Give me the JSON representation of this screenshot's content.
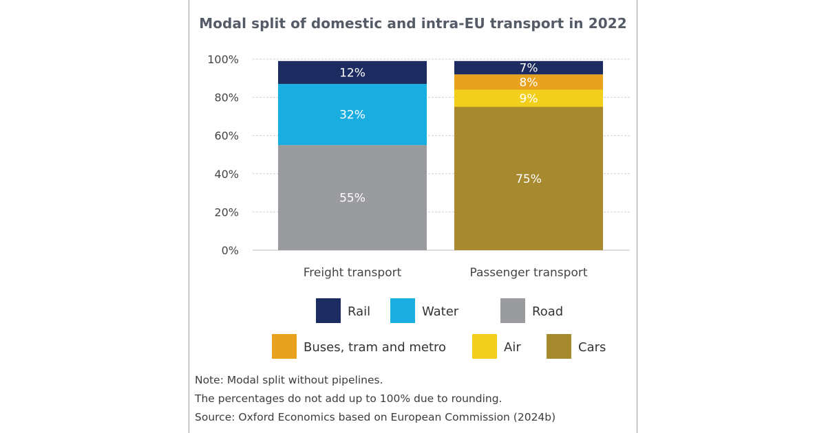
{
  "chart_data": {
    "type": "bar",
    "stacked": true,
    "title": "Modal split of domestic and intra-EU transport in 2022",
    "categories": [
      "Freight transport",
      "Passenger transport"
    ],
    "ylim": [
      0,
      100
    ],
    "yticks": [
      "0%",
      "20%",
      "40%",
      "60%",
      "80%",
      "100%"
    ],
    "grid": true,
    "series": [
      {
        "name": "Road",
        "values": [
          55,
          null
        ],
        "labels": [
          "55%",
          ""
        ],
        "color": "#9a9b9e"
      },
      {
        "name": "Water",
        "values": [
          32,
          null
        ],
        "labels": [
          "32%",
          ""
        ],
        "color": "#1aaee0"
      },
      {
        "name": "Rail",
        "values": [
          12,
          7
        ],
        "labels": [
          "12%",
          "7%"
        ],
        "color": "#1c2c60"
      },
      {
        "name": "Cars",
        "values": [
          null,
          75
        ],
        "labels": [
          "",
          "75%"
        ],
        "color": "#a7892f"
      },
      {
        "name": "Air",
        "values": [
          null,
          9
        ],
        "labels": [
          "",
          "9%"
        ],
        "color": "#f2cf1b"
      },
      {
        "name": "Buses, tram and metro",
        "values": [
          null,
          8
        ],
        "labels": [
          "",
          "8%"
        ],
        "color": "#e9a21e"
      }
    ],
    "stack_order": [
      [
        "Road",
        "Water",
        "Rail"
      ],
      [
        "Cars",
        "Air",
        "Buses, tram and metro",
        "Rail"
      ]
    ],
    "legend": {
      "placement": "bottom",
      "rows": [
        [
          "Rail",
          "Water",
          "Road"
        ],
        [
          "Buses, tram and metro",
          "Air",
          "Cars"
        ]
      ]
    }
  },
  "notes": [
    "Note: Modal split without pipelines.",
    "The percentages do not add up to 100% due to rounding.",
    "Source: Oxford Economics based on European Commission (2024b)"
  ]
}
